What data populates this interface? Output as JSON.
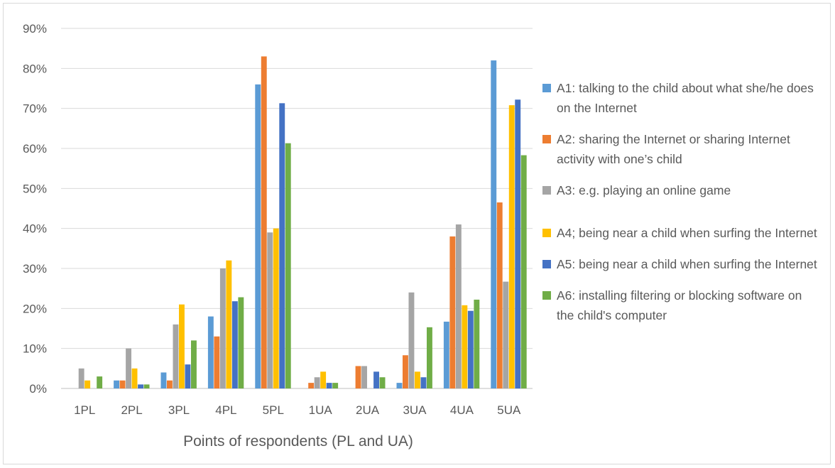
{
  "chart_data": {
    "type": "bar",
    "xlabel": "Points of respondents (PL and UA)",
    "ylabel": "",
    "ylim": [
      0,
      0.9
    ],
    "yticks": [
      "0%",
      "10%",
      "20%",
      "30%",
      "40%",
      "50%",
      "60%",
      "70%",
      "80%",
      "90%"
    ],
    "categories": [
      "1PL",
      "2PL",
      "3PL",
      "4PL",
      "5PL",
      "1UA",
      "2UA",
      "3UA",
      "4UA",
      "5UA"
    ],
    "grid": true,
    "legend_position": "right",
    "series": [
      {
        "name": "A1: talking to the child about what she/he does on the Internet",
        "color": "#5B9BD5",
        "values": [
          0,
          0.02,
          0.04,
          0.18,
          0.76,
          0,
          0,
          0.014,
          0.167,
          0.82
        ]
      },
      {
        "name": "A2: sharing the Internet or sharing Internet activity with one’s child",
        "color": "#ED7D31",
        "values": [
          0,
          0.02,
          0.02,
          0.13,
          0.83,
          0.014,
          0.056,
          0.083,
          0.38,
          0.465
        ]
      },
      {
        "name": "A3: e.g. playing an online game",
        "color": "#A5A5A5",
        "values": [
          0.05,
          0.1,
          0.16,
          0.3,
          0.39,
          0.028,
          0.056,
          0.24,
          0.41,
          0.267
        ]
      },
      {
        "name": "A4; being near a child when surfing the Internet",
        "color": "#FFC000",
        "values": [
          0.02,
          0.05,
          0.21,
          0.32,
          0.4,
          0.042,
          0,
          0.042,
          0.208,
          0.708
        ]
      },
      {
        "name": "A5: being near a child when surfing the Internet",
        "color": "#4472C4",
        "values": [
          0,
          0.01,
          0.06,
          0.218,
          0.713,
          0.014,
          0.042,
          0.028,
          0.194,
          0.722
        ]
      },
      {
        "name": "A6: installing filtering or blocking software on the child's computer",
        "color": "#70AD47",
        "values": [
          0.03,
          0.01,
          0.12,
          0.228,
          0.613,
          0.014,
          0.028,
          0.153,
          0.222,
          0.583
        ]
      }
    ]
  }
}
